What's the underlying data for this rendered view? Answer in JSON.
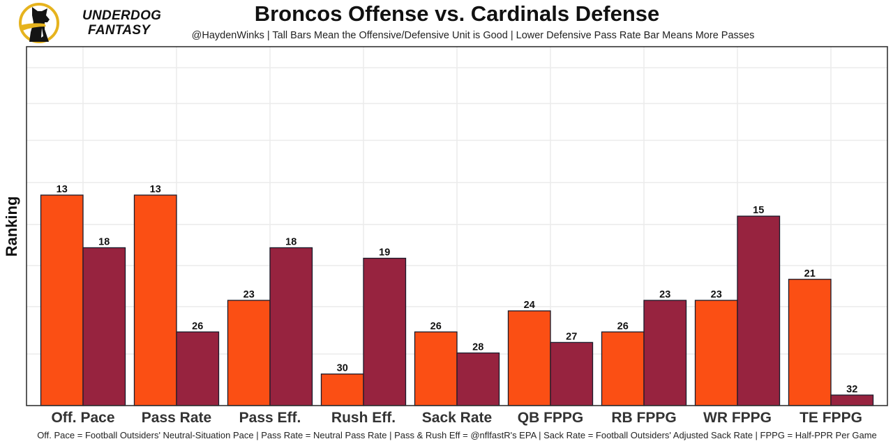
{
  "logo": {
    "line1": "UNDERDOG",
    "line2": "FANTASY",
    "ring_color": "#E6B31E",
    "icon": "dog-silhouette-icon"
  },
  "chart_data": {
    "type": "bar",
    "title": "Broncos Offense vs. Cardinals Defense",
    "subtitle": "@HaydenWinks | Tall Bars Mean the Offensive/Defensive Unit is Good | Lower Defensive Pass Rate Bar Means More Passes",
    "caption": "Off. Pace = Football Outsiders' Neutral-Situation Pace | Pass Rate = Neutral Pass Rate | Pass & Rush Eff = @nflfastR's EPA | Sack Rate = Football Outsiders' Adjusted Sack Rate | FPPG = Half-PPR Per Game",
    "xlabel": "",
    "ylabel": "Ranking",
    "y_axis_note": "Bar height = 33 - rank (rank 1 tallest, rank 32 shortest); no y tick labels shown",
    "rank_range": [
      1,
      32
    ],
    "grid": true,
    "legend": "none",
    "categories": [
      "Off. Pace",
      "Pass Rate",
      "Pass Eff.",
      "Rush Eff.",
      "Sack Rate",
      "QB FPPG",
      "RB FPPG",
      "WR FPPG",
      "TE FPPG"
    ],
    "series": [
      {
        "name": "Broncos Offense",
        "color": "#FB4F14",
        "values": [
          13,
          13,
          23,
          30,
          26,
          24,
          26,
          23,
          21
        ]
      },
      {
        "name": "Cardinals Defense",
        "color": "#97233F",
        "values": [
          18,
          26,
          18,
          19,
          28,
          27,
          23,
          15,
          32
        ]
      }
    ]
  }
}
